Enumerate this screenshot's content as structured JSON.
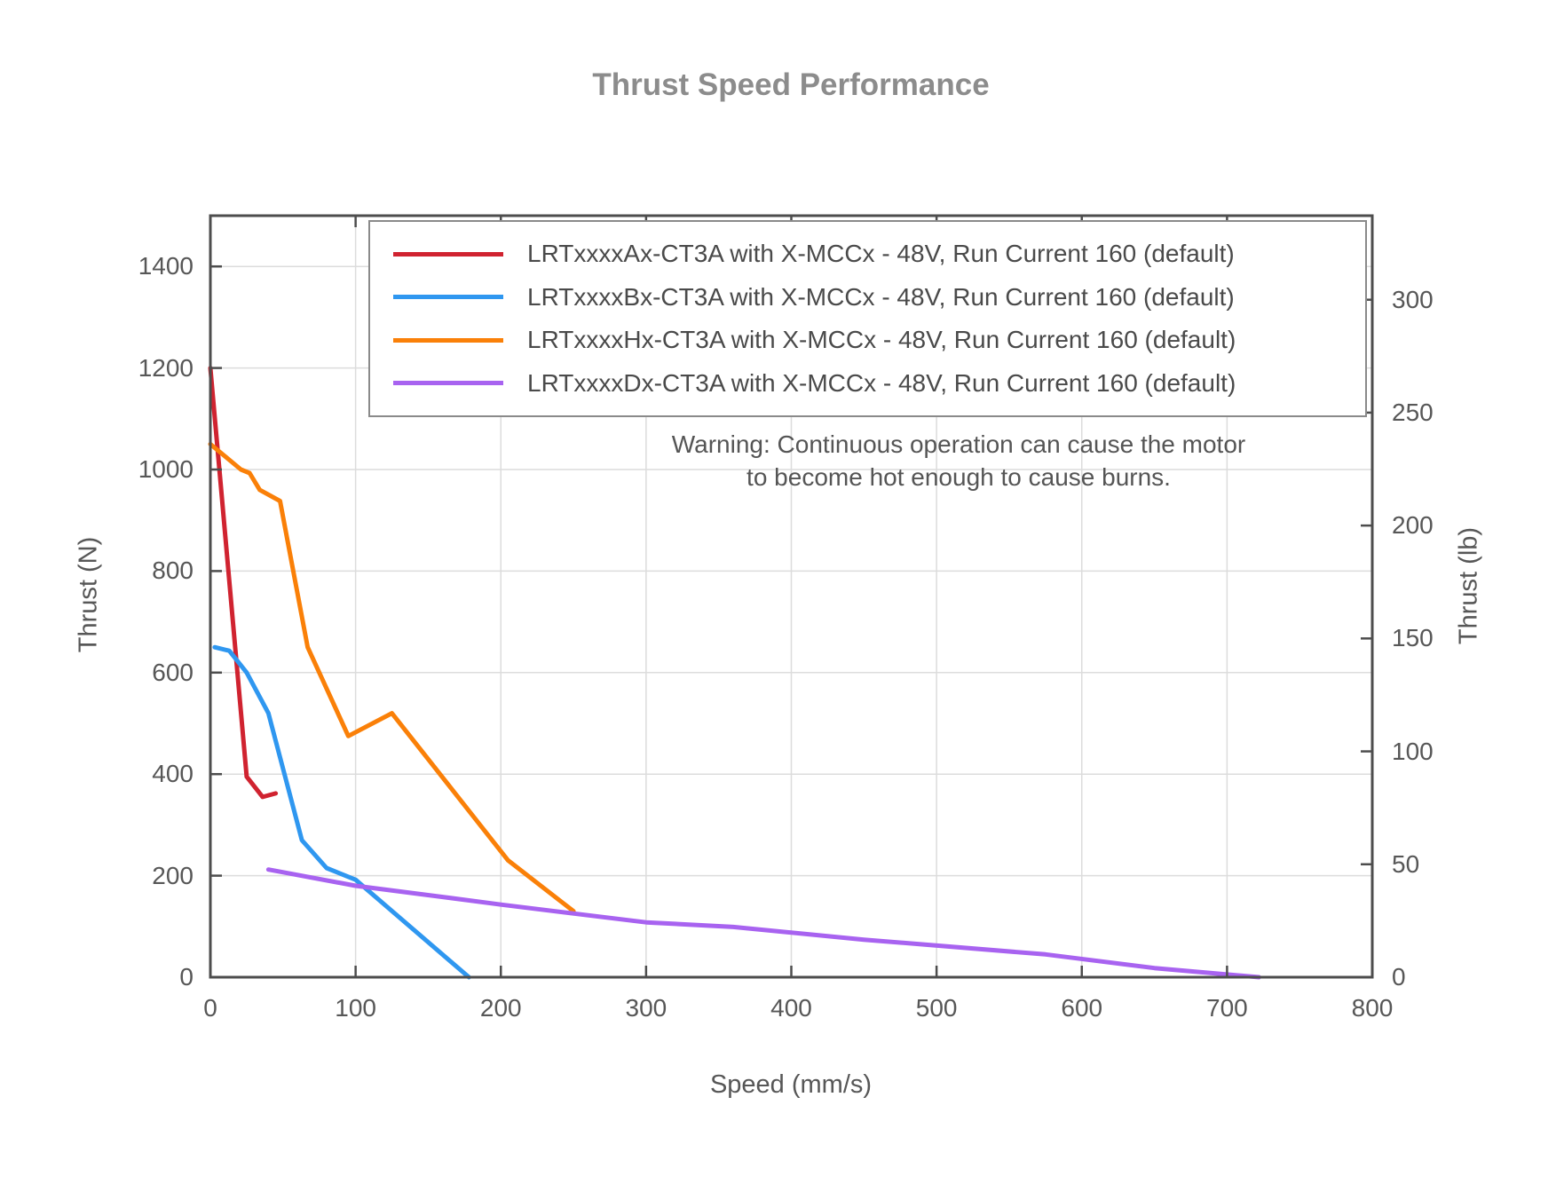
{
  "chart_data": {
    "type": "line",
    "title": "Thrust Speed Performance",
    "xlabel": "Speed (mm/s)",
    "ylabel_left": "Thrust (N)",
    "ylabel_right": "Thrust (lb)",
    "xlim": [
      0,
      800
    ],
    "ylim_left_N": [
      0,
      1500
    ],
    "x_ticks": [
      0,
      100,
      200,
      300,
      400,
      500,
      600,
      700,
      800
    ],
    "y_ticks_left_N": [
      0,
      200,
      400,
      600,
      800,
      1000,
      1200,
      1400
    ],
    "y_ticks_right_lb": [
      0,
      50,
      100,
      150,
      200,
      250,
      300
    ],
    "N_per_lb": 4.4482,
    "grid": true,
    "legend_position": "upper-right-inside",
    "warning_lines": [
      "Warning: Continuous operation can cause the motor",
      "to become hot enough to cause burns."
    ],
    "series": [
      {
        "name": "LRTxxxxAx-CT3A with X-MCCx - 48V, Run Current 160 (default)",
        "color": "#d02330",
        "points": [
          [
            0,
            1200
          ],
          [
            25,
            395
          ],
          [
            36,
            355
          ],
          [
            45,
            362
          ]
        ]
      },
      {
        "name": "LRTxxxxBx-CT3A with X-MCCx - 48V, Run Current 160 (default)",
        "color": "#2f97f0",
        "points": [
          [
            3,
            650
          ],
          [
            13,
            643
          ],
          [
            25,
            600
          ],
          [
            40,
            520
          ],
          [
            63,
            270
          ],
          [
            80,
            215
          ],
          [
            100,
            192
          ],
          [
            178,
            0
          ]
        ]
      },
      {
        "name": "LRTxxxxHx-CT3A with X-MCCx - 48V, Run Current 160 (default)",
        "color": "#fa8008",
        "points": [
          [
            0,
            1050
          ],
          [
            21,
            1000
          ],
          [
            27,
            993
          ],
          [
            34,
            960
          ],
          [
            48,
            938
          ],
          [
            67,
            650
          ],
          [
            95,
            475
          ],
          [
            125,
            520
          ],
          [
            205,
            230
          ],
          [
            250,
            130
          ]
        ]
      },
      {
        "name": "LRTxxxxDx-CT3A with X-MCCx - 48V, Run Current 160 (default)",
        "color": "#a863f0",
        "points": [
          [
            40,
            212
          ],
          [
            100,
            180
          ],
          [
            160,
            158
          ],
          [
            200,
            143
          ],
          [
            300,
            108
          ],
          [
            360,
            99
          ],
          [
            450,
            74
          ],
          [
            575,
            45
          ],
          [
            650,
            18
          ],
          [
            722,
            0
          ]
        ]
      }
    ]
  }
}
